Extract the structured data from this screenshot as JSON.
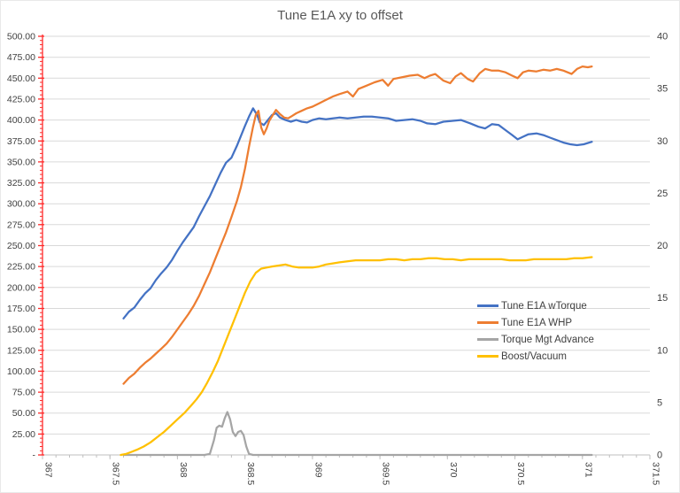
{
  "chart_data": {
    "type": "line",
    "title": "Tune E1A xy to offset",
    "xlabel": "",
    "ylabel_left": "",
    "ylabel_right": "",
    "xlim": [
      367,
      371.5
    ],
    "ylim_left": [
      0,
      500
    ],
    "ylim_right": [
      0,
      40
    ],
    "grid": "horizontal",
    "legend_position": "middle-right",
    "x_tick_values": [
      367,
      367.5,
      368,
      368.5,
      369,
      369.5,
      370,
      370.5,
      371,
      371.5
    ],
    "x_tick_labels": [
      "367",
      "367.5",
      "368",
      "368.5",
      "369",
      "369.5",
      "370",
      "370.5",
      "371",
      "371.5"
    ],
    "x_minor_step": 0.1,
    "left_tick_values": [
      500,
      475,
      450,
      425,
      400,
      375,
      350,
      325,
      300,
      275,
      250,
      225,
      200,
      175,
      150,
      125,
      100,
      75,
      50,
      25,
      0
    ],
    "left_tick_labels": [
      "500.00",
      "475.00",
      "450.00",
      "425.00",
      "400.00",
      "375.00",
      "350.00",
      "325.00",
      "300.00",
      "275.00",
      "250.00",
      "225.00",
      "200.00",
      "175.00",
      "150.00",
      "125.00",
      "100.00",
      "75.00",
      "50.00",
      "25.00",
      "-"
    ],
    "left_minor_step": 5,
    "right_tick_values": [
      40,
      35,
      30,
      25,
      20,
      15,
      10,
      5,
      0
    ],
    "right_tick_labels": [
      "40",
      "35",
      "30",
      "25",
      "20",
      "15",
      "10",
      "5",
      "0"
    ],
    "axis_colors": {
      "left_axis": "#FF2A2A",
      "x_axis": "#BFBFBF",
      "gridline": "#D9D9D9",
      "tick_label": "#404040",
      "title": "#595959"
    },
    "series": [
      {
        "name": "Tune E1A wTorque",
        "color": "#4472C4",
        "axis": "left",
        "points": [
          [
            367.6,
            163
          ],
          [
            367.64,
            171
          ],
          [
            367.68,
            176
          ],
          [
            367.72,
            185
          ],
          [
            367.76,
            193
          ],
          [
            367.8,
            199
          ],
          [
            367.84,
            209
          ],
          [
            367.88,
            217
          ],
          [
            367.92,
            224
          ],
          [
            367.96,
            233
          ],
          [
            368.0,
            244
          ],
          [
            368.04,
            254
          ],
          [
            368.08,
            263
          ],
          [
            368.12,
            272
          ],
          [
            368.16,
            285
          ],
          [
            368.2,
            297
          ],
          [
            368.24,
            309
          ],
          [
            368.28,
            323
          ],
          [
            368.32,
            337
          ],
          [
            368.36,
            349
          ],
          [
            368.4,
            355
          ],
          [
            368.44,
            369
          ],
          [
            368.47,
            381
          ],
          [
            368.5,
            393
          ],
          [
            368.53,
            404
          ],
          [
            368.56,
            414
          ],
          [
            368.59,
            406
          ],
          [
            368.61,
            397
          ],
          [
            368.64,
            394
          ],
          [
            368.67,
            400
          ],
          [
            368.7,
            406
          ],
          [
            368.73,
            408
          ],
          [
            368.76,
            403
          ],
          [
            368.8,
            400
          ],
          [
            368.84,
            398
          ],
          [
            368.88,
            400
          ],
          [
            368.92,
            398
          ],
          [
            368.96,
            397
          ],
          [
            369.0,
            400
          ],
          [
            369.05,
            402
          ],
          [
            369.1,
            401
          ],
          [
            369.15,
            402
          ],
          [
            369.2,
            403
          ],
          [
            369.26,
            402
          ],
          [
            369.32,
            403
          ],
          [
            369.38,
            404
          ],
          [
            369.44,
            404
          ],
          [
            369.5,
            403
          ],
          [
            369.56,
            402
          ],
          [
            369.62,
            399
          ],
          [
            369.68,
            400
          ],
          [
            369.74,
            401
          ],
          [
            369.8,
            399
          ],
          [
            369.85,
            396
          ],
          [
            369.91,
            395
          ],
          [
            369.97,
            398
          ],
          [
            370.04,
            399
          ],
          [
            370.1,
            400
          ],
          [
            370.17,
            396
          ],
          [
            370.23,
            392
          ],
          [
            370.28,
            390
          ],
          [
            370.33,
            395
          ],
          [
            370.38,
            394
          ],
          [
            370.43,
            388
          ],
          [
            370.48,
            382
          ],
          [
            370.52,
            377
          ],
          [
            370.56,
            380
          ],
          [
            370.6,
            383
          ],
          [
            370.66,
            384
          ],
          [
            370.71,
            382
          ],
          [
            370.76,
            379
          ],
          [
            370.81,
            376
          ],
          [
            370.86,
            373
          ],
          [
            370.91,
            371
          ],
          [
            370.96,
            370
          ],
          [
            371.01,
            371
          ],
          [
            371.07,
            374
          ]
        ]
      },
      {
        "name": "Tune E1A WHP",
        "color": "#ED7D31",
        "axis": "left",
        "points": [
          [
            367.6,
            85
          ],
          [
            367.64,
            92
          ],
          [
            367.68,
            97
          ],
          [
            367.72,
            104
          ],
          [
            367.76,
            110
          ],
          [
            367.8,
            115
          ],
          [
            367.84,
            121
          ],
          [
            367.88,
            127
          ],
          [
            367.92,
            133
          ],
          [
            367.96,
            141
          ],
          [
            368.0,
            150
          ],
          [
            368.04,
            159
          ],
          [
            368.08,
            168
          ],
          [
            368.12,
            178
          ],
          [
            368.16,
            190
          ],
          [
            368.2,
            204
          ],
          [
            368.24,
            218
          ],
          [
            368.28,
            234
          ],
          [
            368.32,
            250
          ],
          [
            368.36,
            266
          ],
          [
            368.4,
            284
          ],
          [
            368.44,
            303
          ],
          [
            368.47,
            320
          ],
          [
            368.5,
            342
          ],
          [
            368.53,
            368
          ],
          [
            368.56,
            392
          ],
          [
            368.58,
            406
          ],
          [
            368.6,
            411
          ],
          [
            368.62,
            391
          ],
          [
            368.64,
            383
          ],
          [
            368.66,
            390
          ],
          [
            368.68,
            399
          ],
          [
            368.71,
            407
          ],
          [
            368.73,
            412
          ],
          [
            368.76,
            407
          ],
          [
            368.79,
            403
          ],
          [
            368.82,
            402
          ],
          [
            368.85,
            405
          ],
          [
            368.88,
            408
          ],
          [
            368.92,
            411
          ],
          [
            368.96,
            414
          ],
          [
            369.0,
            416
          ],
          [
            369.05,
            420
          ],
          [
            369.1,
            424
          ],
          [
            369.15,
            428
          ],
          [
            369.2,
            431
          ],
          [
            369.26,
            434
          ],
          [
            369.3,
            428
          ],
          [
            369.34,
            437
          ],
          [
            369.4,
            441
          ],
          [
            369.46,
            445
          ],
          [
            369.52,
            448
          ],
          [
            369.56,
            441
          ],
          [
            369.6,
            449
          ],
          [
            369.66,
            451
          ],
          [
            369.72,
            453
          ],
          [
            369.78,
            454
          ],
          [
            369.83,
            450
          ],
          [
            369.87,
            453
          ],
          [
            369.91,
            455
          ],
          [
            369.97,
            447
          ],
          [
            370.02,
            444
          ],
          [
            370.06,
            452
          ],
          [
            370.1,
            456
          ],
          [
            370.15,
            449
          ],
          [
            370.19,
            446
          ],
          [
            370.24,
            456
          ],
          [
            370.28,
            461
          ],
          [
            370.33,
            459
          ],
          [
            370.38,
            459
          ],
          [
            370.43,
            457
          ],
          [
            370.48,
            453
          ],
          [
            370.52,
            450
          ],
          [
            370.56,
            457
          ],
          [
            370.6,
            459
          ],
          [
            370.66,
            458
          ],
          [
            370.71,
            460
          ],
          [
            370.76,
            459
          ],
          [
            370.81,
            461
          ],
          [
            370.86,
            459
          ],
          [
            370.92,
            455
          ],
          [
            370.96,
            461
          ],
          [
            371.0,
            464
          ],
          [
            371.04,
            463
          ],
          [
            371.07,
            464
          ]
        ]
      },
      {
        "name": "Torque Mgt Advance",
        "color": "#A5A5A5",
        "axis": "right",
        "points": [
          [
            367.6,
            0
          ],
          [
            367.8,
            0
          ],
          [
            368.0,
            0
          ],
          [
            368.1,
            0
          ],
          [
            368.2,
            0
          ],
          [
            368.24,
            0.1
          ],
          [
            368.27,
            1.4
          ],
          [
            368.29,
            2.6
          ],
          [
            368.31,
            2.8
          ],
          [
            368.33,
            2.7
          ],
          [
            368.35,
            3.5
          ],
          [
            368.37,
            4.1
          ],
          [
            368.39,
            3.4
          ],
          [
            368.41,
            2.2
          ],
          [
            368.43,
            1.8
          ],
          [
            368.45,
            2.2
          ],
          [
            368.47,
            2.3
          ],
          [
            368.49,
            1.9
          ],
          [
            368.51,
            0.8
          ],
          [
            368.53,
            0.1
          ],
          [
            368.56,
            0
          ],
          [
            368.8,
            0
          ],
          [
            369.0,
            0
          ],
          [
            369.5,
            0
          ],
          [
            370.0,
            0
          ],
          [
            370.5,
            0
          ],
          [
            371.07,
            0
          ]
        ]
      },
      {
        "name": "Boost/Vacuum",
        "color": "#FFC000",
        "axis": "right",
        "points": [
          [
            367.58,
            0
          ],
          [
            367.62,
            0.1
          ],
          [
            367.66,
            0.3
          ],
          [
            367.7,
            0.5
          ],
          [
            367.75,
            0.8
          ],
          [
            367.8,
            1.2
          ],
          [
            367.85,
            1.7
          ],
          [
            367.9,
            2.2
          ],
          [
            367.95,
            2.8
          ],
          [
            368.0,
            3.4
          ],
          [
            368.05,
            4.0
          ],
          [
            368.1,
            4.7
          ],
          [
            368.14,
            5.3
          ],
          [
            368.18,
            6.0
          ],
          [
            368.22,
            6.9
          ],
          [
            368.26,
            7.9
          ],
          [
            368.3,
            9.0
          ],
          [
            368.34,
            10.3
          ],
          [
            368.38,
            11.6
          ],
          [
            368.42,
            12.9
          ],
          [
            368.46,
            14.2
          ],
          [
            368.5,
            15.5
          ],
          [
            368.54,
            16.6
          ],
          [
            368.58,
            17.4
          ],
          [
            368.62,
            17.8
          ],
          [
            368.66,
            17.9
          ],
          [
            368.7,
            18.0
          ],
          [
            368.75,
            18.1
          ],
          [
            368.8,
            18.2
          ],
          [
            368.85,
            18.0
          ],
          [
            368.9,
            17.9
          ],
          [
            368.95,
            17.9
          ],
          [
            369.0,
            17.9
          ],
          [
            369.05,
            18.0
          ],
          [
            369.1,
            18.2
          ],
          [
            369.15,
            18.3
          ],
          [
            369.2,
            18.4
          ],
          [
            369.26,
            18.5
          ],
          [
            369.32,
            18.6
          ],
          [
            369.38,
            18.6
          ],
          [
            369.44,
            18.6
          ],
          [
            369.5,
            18.6
          ],
          [
            369.56,
            18.7
          ],
          [
            369.62,
            18.7
          ],
          [
            369.68,
            18.6
          ],
          [
            369.74,
            18.7
          ],
          [
            369.8,
            18.7
          ],
          [
            369.86,
            18.8
          ],
          [
            369.92,
            18.8
          ],
          [
            369.98,
            18.7
          ],
          [
            370.04,
            18.7
          ],
          [
            370.1,
            18.6
          ],
          [
            370.16,
            18.7
          ],
          [
            370.22,
            18.7
          ],
          [
            370.28,
            18.7
          ],
          [
            370.34,
            18.7
          ],
          [
            370.4,
            18.7
          ],
          [
            370.46,
            18.6
          ],
          [
            370.52,
            18.6
          ],
          [
            370.58,
            18.6
          ],
          [
            370.64,
            18.7
          ],
          [
            370.7,
            18.7
          ],
          [
            370.76,
            18.7
          ],
          [
            370.82,
            18.7
          ],
          [
            370.88,
            18.7
          ],
          [
            370.94,
            18.8
          ],
          [
            371.0,
            18.8
          ],
          [
            371.07,
            18.9
          ]
        ]
      }
    ]
  }
}
